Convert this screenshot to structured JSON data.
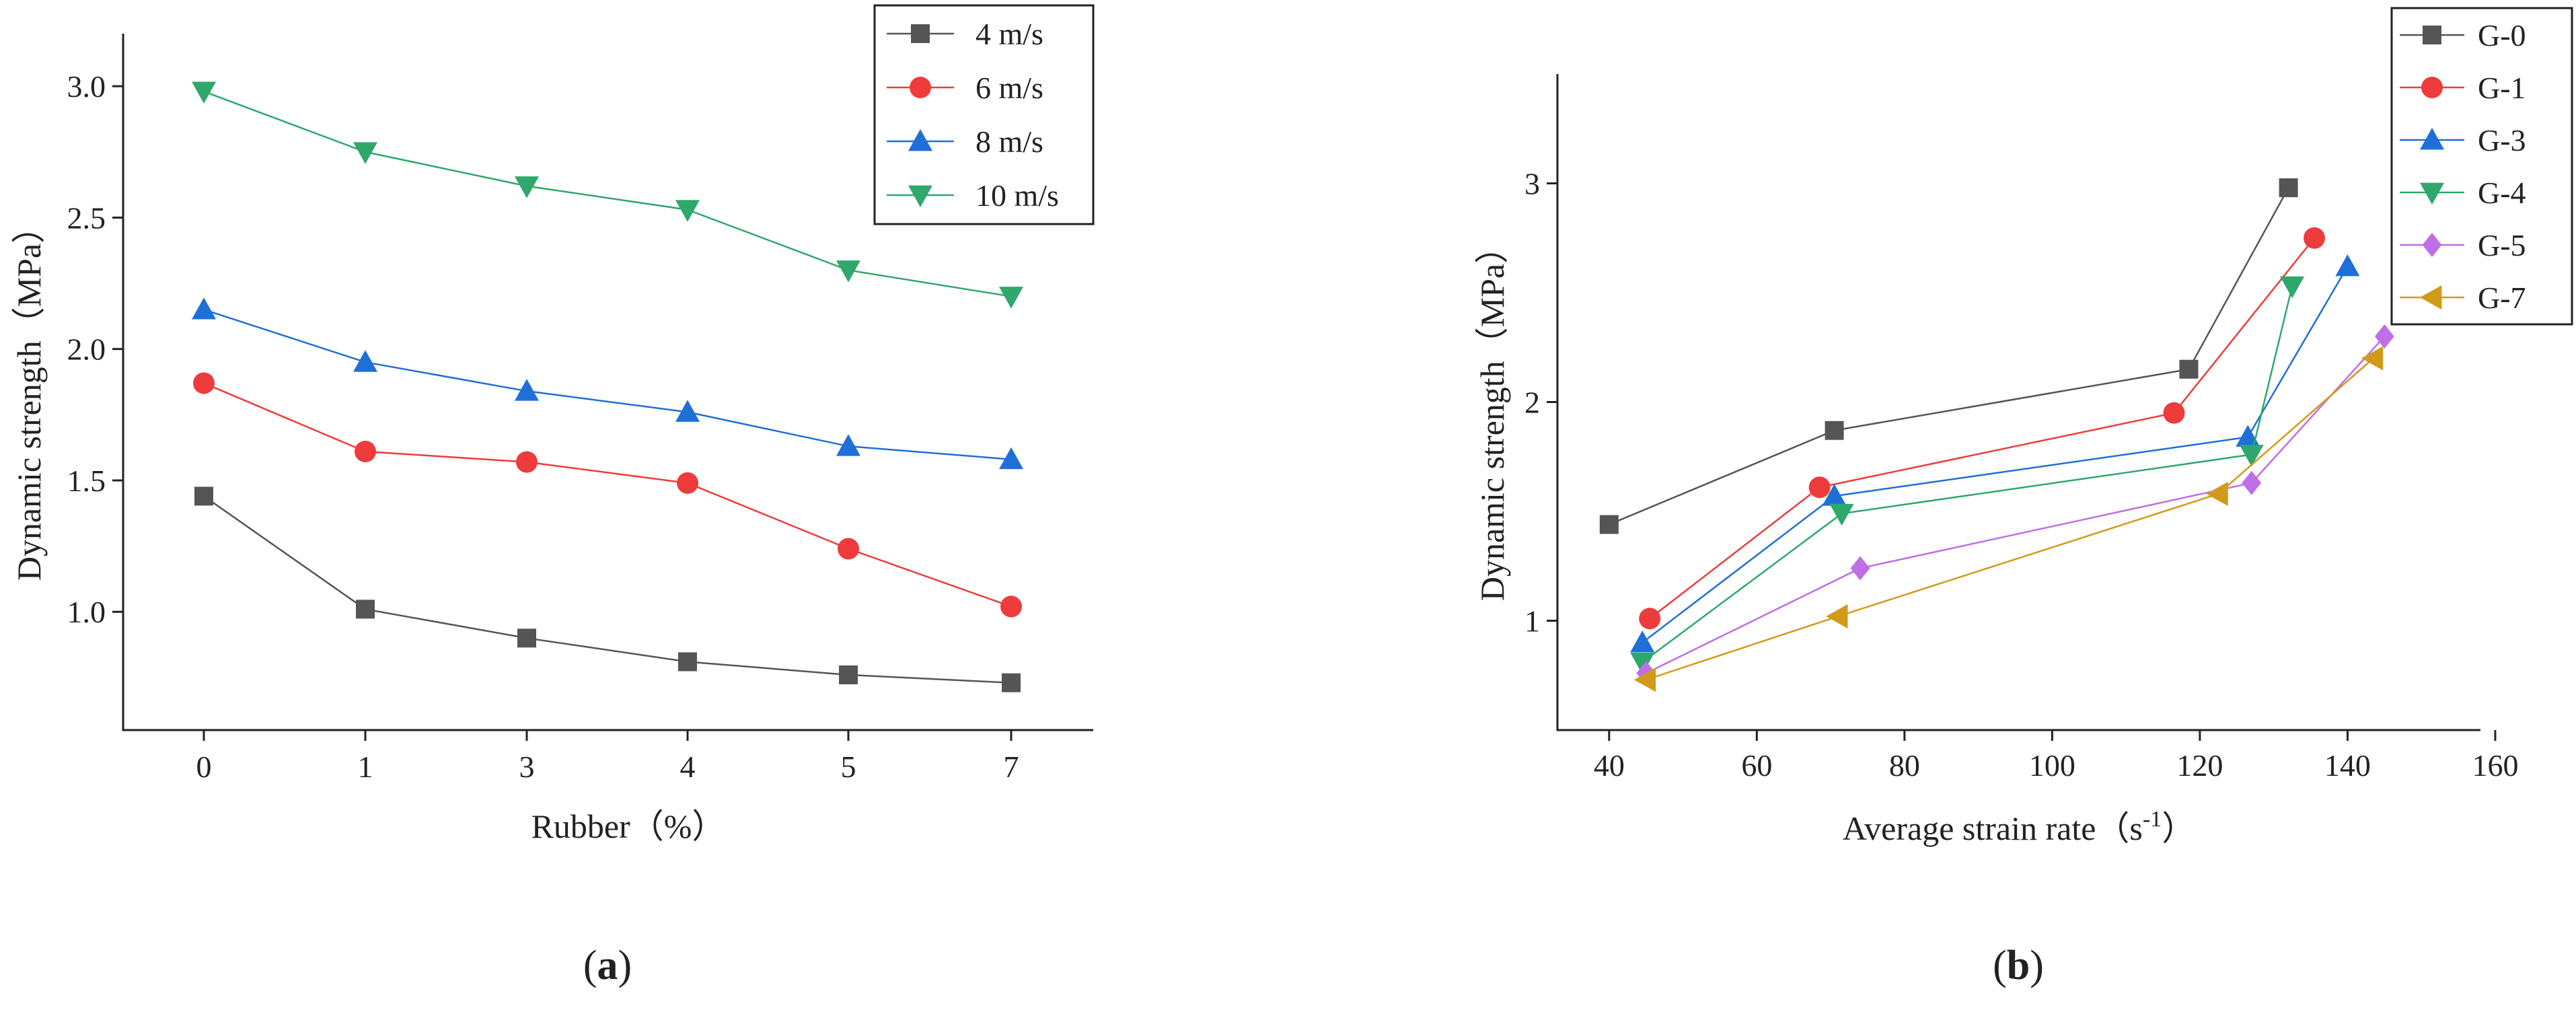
{
  "chart_data": [
    {
      "type": "line",
      "panel_label": "a",
      "xlabel": "Rubber（%）",
      "ylabel": "Dynamic strength（MPa）",
      "categories": [
        "0",
        "1",
        "3",
        "4",
        "5",
        "7"
      ],
      "ylim": [
        0.55,
        3.2
      ],
      "yticks": [
        "1.0",
        "1.5",
        "2.0",
        "2.5",
        "3.0"
      ],
      "legend_position": "top-right",
      "series": [
        {
          "name": "4 m/s",
          "color": "#555555",
          "marker": "square",
          "values": [
            1.44,
            1.01,
            0.9,
            0.81,
            0.76,
            0.73
          ]
        },
        {
          "name": "6 m/s",
          "color": "#ee3b3b",
          "marker": "circle",
          "values": [
            1.87,
            1.61,
            1.57,
            1.49,
            1.24,
            1.02
          ]
        },
        {
          "name": "8 m/s",
          "color": "#1f6fd8",
          "marker": "triangle-up",
          "values": [
            2.15,
            1.95,
            1.84,
            1.76,
            1.63,
            1.58
          ]
        },
        {
          "name": "10 m/s",
          "color": "#2ea86b",
          "marker": "triangle-down",
          "values": [
            2.98,
            2.75,
            2.62,
            2.53,
            2.3,
            2.2
          ]
        }
      ]
    },
    {
      "type": "line",
      "panel_label": "b",
      "xlabel": "Average strain rate（s",
      "xlabel_sup": "-1",
      "xlabel_end": "）",
      "ylabel": "Dynamic strength（MPa）",
      "xlim": [
        33,
        158
      ],
      "ylim": [
        0.5,
        3.5
      ],
      "xticks": [
        40,
        60,
        80,
        100,
        120,
        140,
        160
      ],
      "yticks": [
        1,
        2,
        3
      ],
      "legend_position": "top-right",
      "series": [
        {
          "name": "G-0",
          "color": "#555555",
          "marker": "square",
          "x": [
            40,
            70.5,
            118.5,
            132
          ],
          "y": [
            1.44,
            1.87,
            2.15,
            2.98
          ]
        },
        {
          "name": "G-1",
          "color": "#ee3b3b",
          "marker": "circle",
          "x": [
            45.5,
            68.5,
            116.5,
            135.5
          ],
          "y": [
            1.01,
            1.61,
            1.95,
            2.75
          ]
        },
        {
          "name": "G-3",
          "color": "#1f6fd8",
          "marker": "triangle-up",
          "x": [
            44.5,
            70.5,
            126.5,
            140
          ],
          "y": [
            0.9,
            1.57,
            1.84,
            2.62
          ]
        },
        {
          "name": "G-4",
          "color": "#2ea86b",
          "marker": "triangle-down",
          "x": [
            44.5,
            71.5,
            127,
            132.5
          ],
          "y": [
            0.81,
            1.49,
            1.76,
            2.53
          ]
        },
        {
          "name": "G-5",
          "color": "#c06ee6",
          "marker": "diamond",
          "x": [
            45,
            74,
            127,
            145
          ],
          "y": [
            0.76,
            1.24,
            1.63,
            2.3
          ]
        },
        {
          "name": "G-7",
          "color": "#d19a1a",
          "marker": "triangle-left",
          "x": [
            45,
            71,
            122.5,
            143.5
          ],
          "y": [
            0.73,
            1.02,
            1.58,
            2.2
          ]
        }
      ]
    }
  ]
}
